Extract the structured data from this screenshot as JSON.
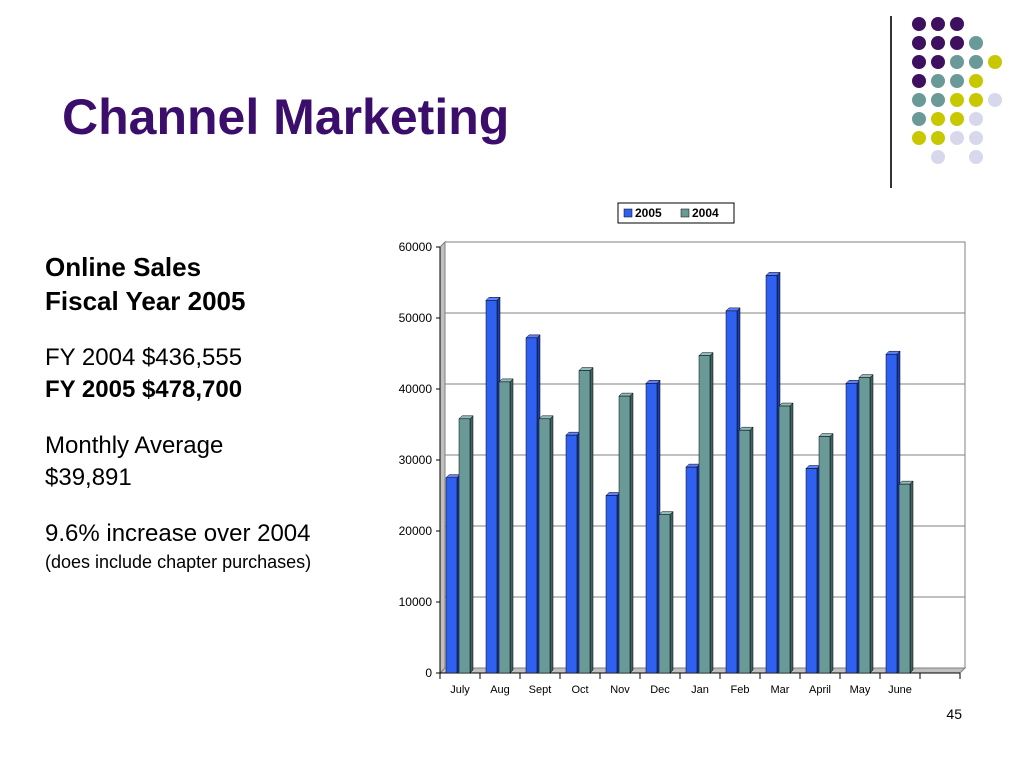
{
  "slide": {
    "title": "Channel Marketing",
    "number": "45"
  },
  "left": {
    "heading_line1": "Online Sales",
    "heading_line2": "Fiscal Year 2005",
    "fy2004": "FY 2004 $436,555",
    "fy2005": "FY 2005 $478,700",
    "monthly_avg_label": "Monthly Average",
    "monthly_avg_value": "$39,891",
    "increase": "9.6% increase over 2004",
    "note": "(does include chapter purchases)"
  },
  "decor": {
    "dot_colors": {
      "purple": "#3d1060",
      "teal": "#6a9a98",
      "yellow": "#c8c800",
      "lavender": "#d8d8ec"
    }
  },
  "chart_data": {
    "type": "bar",
    "categories": [
      "July",
      "Aug",
      "Sept",
      "Oct",
      "Nov",
      "Dec",
      "Jan",
      "Feb",
      "Mar",
      "April",
      "May",
      "June"
    ],
    "series": [
      {
        "name": "2005",
        "color": "#3060f0",
        "values": [
          27500,
          52500,
          47200,
          33500,
          25000,
          40800,
          29000,
          51000,
          56000,
          28800,
          40800,
          44900
        ]
      },
      {
        "name": "2004",
        "color": "#6a9a98",
        "values": [
          35800,
          41000,
          35800,
          42600,
          39000,
          22300,
          44700,
          34200,
          37600,
          33300,
          41600,
          26600
        ]
      }
    ],
    "title": "",
    "xlabel": "",
    "ylabel": "",
    "ylim": [
      0,
      60000
    ],
    "yticks": [
      "0",
      "10000",
      "20000",
      "30000",
      "40000",
      "50000",
      "60000"
    ],
    "grid": true,
    "legend": "top"
  }
}
